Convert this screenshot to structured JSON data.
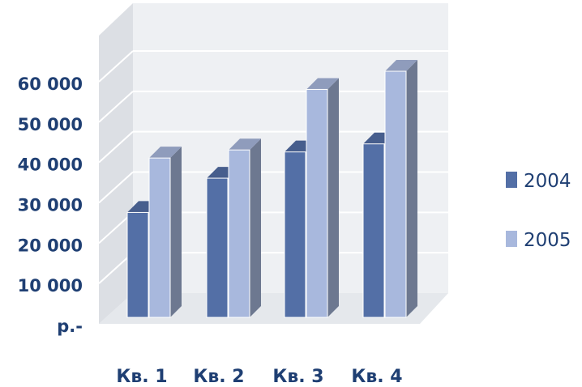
{
  "chart_data": {
    "type": "bar",
    "categories": [
      "Кв. 1",
      "Кв. 2",
      "Кв. 3",
      "Кв. 4"
    ],
    "series": [
      {
        "name": "2004",
        "values": [
          26000,
          34500,
          41000,
          43000
        ],
        "color": "#536fa6"
      },
      {
        "name": "2005",
        "values": [
          39500,
          41500,
          56500,
          61000
        ],
        "color": "#a8b8dd"
      }
    ],
    "y_ticks": [
      {
        "value": 0,
        "label": "р.-"
      },
      {
        "value": 10000,
        "label": "10 000"
      },
      {
        "value": 20000,
        "label": "20 000"
      },
      {
        "value": 30000,
        "label": "30 000"
      },
      {
        "value": 40000,
        "label": "40 000"
      },
      {
        "value": 50000,
        "label": "50 000"
      },
      {
        "value": 60000,
        "label": "60 000"
      }
    ],
    "ylim": [
      0,
      70000
    ],
    "grid": true,
    "style": "3d",
    "legend_position": "right",
    "title": "",
    "xlabel": "",
    "ylabel": ""
  }
}
